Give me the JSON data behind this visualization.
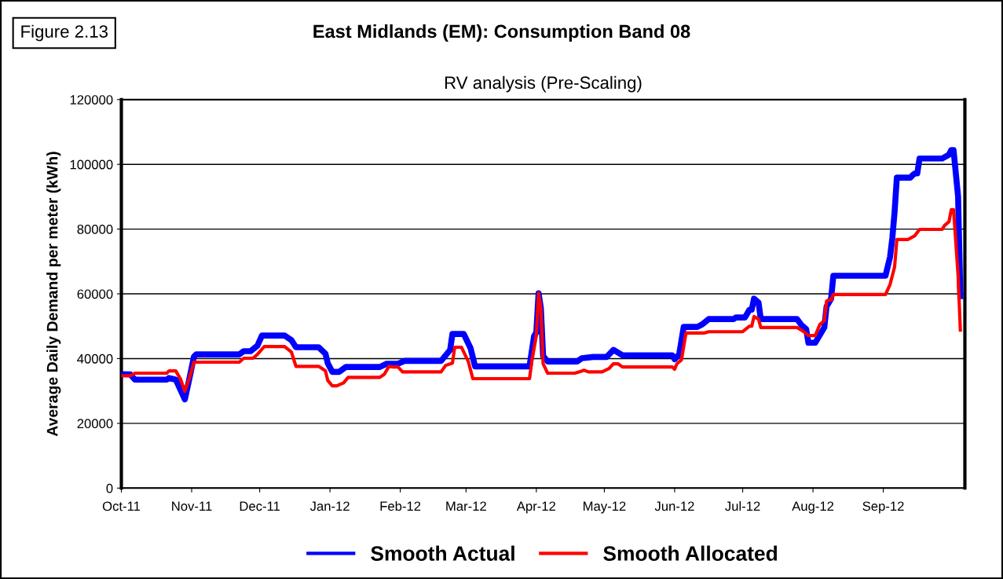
{
  "chart_data": {
    "type": "line",
    "title": "East Midlands (EM): Consumption Band 08",
    "subtitle": "RV analysis (Pre-Scaling)",
    "ylabel": "Average Daily Demand per meter (kWh)",
    "annotations": [
      "Figure 2.13"
    ],
    "xlim": [
      "2011-10-01",
      "2012-10-07"
    ],
    "ylim": [
      0,
      120000
    ],
    "yticks": [
      0,
      20000,
      40000,
      60000,
      80000,
      100000,
      120000
    ],
    "xticks": [
      {
        "value": "2011-10-01",
        "label": "Oct-11"
      },
      {
        "value": "2011-11-01",
        "label": "Nov-11"
      },
      {
        "value": "2011-12-01",
        "label": "Dec-11"
      },
      {
        "value": "2012-01-01",
        "label": "Jan-12"
      },
      {
        "value": "2012-02-01",
        "label": "Feb-12"
      },
      {
        "value": "2012-03-01",
        "label": "Mar-12"
      },
      {
        "value": "2012-04-01",
        "label": "Apr-12"
      },
      {
        "value": "2012-05-01",
        "label": "May-12"
      },
      {
        "value": "2012-06-01",
        "label": "Jun-12"
      },
      {
        "value": "2012-07-01",
        "label": "Jul-12"
      },
      {
        "value": "2012-08-01",
        "label": "Aug-12"
      },
      {
        "value": "2012-09-01",
        "label": "Sep-12"
      }
    ],
    "grid": "y",
    "legend": "bottom",
    "marker": "none",
    "line_style": "solid",
    "series": [
      {
        "name": "Smooth Actual",
        "color": "#0000ff",
        "x": [
          "2011-10-01",
          "2011-10-05",
          "2011-10-07",
          "2011-10-21",
          "2011-10-22",
          "2011-10-25",
          "2011-10-29",
          "2011-10-31",
          "2011-11-02",
          "2011-11-03",
          "2011-11-22",
          "2011-11-24",
          "2011-11-27",
          "2011-11-30",
          "2011-12-02",
          "2011-12-12",
          "2011-12-15",
          "2011-12-17",
          "2011-12-27",
          "2011-12-30",
          "2011-12-31",
          "2012-01-02",
          "2012-01-05",
          "2012-01-08",
          "2012-01-23",
          "2012-01-26",
          "2012-01-31",
          "2012-02-03",
          "2012-02-19",
          "2012-02-23",
          "2012-02-24",
          "2012-02-29",
          "2012-03-03",
          "2012-03-05",
          "2012-03-29",
          "2012-03-31",
          "2012-04-01",
          "2012-04-02",
          "2012-04-03",
          "2012-04-04",
          "2012-04-06",
          "2012-04-19",
          "2012-04-21",
          "2012-04-26",
          "2012-05-02",
          "2012-05-05",
          "2012-05-09",
          "2012-05-31",
          "2012-06-01",
          "2012-06-03",
          "2012-06-05",
          "2012-06-11",
          "2012-06-13",
          "2012-06-16",
          "2012-06-27",
          "2012-06-28",
          "2012-07-02",
          "2012-07-04",
          "2012-07-05",
          "2012-07-06",
          "2012-07-08",
          "2012-07-09",
          "2012-07-25",
          "2012-07-27",
          "2012-07-29",
          "2012-07-30",
          "2012-08-02",
          "2012-08-06",
          "2012-08-07",
          "2012-08-09",
          "2012-08-10",
          "2012-09-02",
          "2012-09-04",
          "2012-09-05",
          "2012-09-06",
          "2012-09-07",
          "2012-09-13",
          "2012-09-14",
          "2012-09-15",
          "2012-09-16",
          "2012-09-17",
          "2012-09-27",
          "2012-09-30",
          "2012-10-01",
          "2012-10-02",
          "2012-10-04",
          "2012-10-05"
        ],
        "values": [
          35200,
          35100,
          33500,
          33500,
          34000,
          33500,
          27400,
          33800,
          40600,
          41300,
          41300,
          42300,
          42300,
          44000,
          47100,
          47100,
          45700,
          43500,
          43500,
          41500,
          38600,
          35900,
          35900,
          37400,
          37400,
          38400,
          38400,
          39300,
          39300,
          42700,
          47600,
          47600,
          43200,
          37600,
          37600,
          46900,
          48100,
          60200,
          55600,
          40800,
          39100,
          39100,
          40100,
          40500,
          40500,
          42700,
          41000,
          41000,
          39800,
          41300,
          49800,
          49800,
          50500,
          52200,
          52200,
          52700,
          52700,
          55100,
          55100,
          58500,
          57300,
          52200,
          52200,
          50300,
          49100,
          44900,
          44900,
          49600,
          56100,
          58500,
          65600,
          65600,
          71400,
          77200,
          85300,
          95900,
          95900,
          96700,
          97200,
          97200,
          101800,
          101800,
          103000,
          104400,
          104400,
          90100,
          59300
        ]
      },
      {
        "name": "Smooth Allocated",
        "color": "#ff0000",
        "x": [
          "2011-10-01",
          "2011-10-05",
          "2011-10-07",
          "2011-10-21",
          "2011-10-22",
          "2011-10-25",
          "2011-10-27",
          "2011-10-29",
          "2011-10-31",
          "2011-11-02",
          "2011-11-22",
          "2011-11-24",
          "2011-11-28",
          "2011-11-30",
          "2011-12-03",
          "2011-12-12",
          "2011-12-15",
          "2011-12-17",
          "2011-12-27",
          "2011-12-30",
          "2011-12-31",
          "2012-01-02",
          "2012-01-04",
          "2012-01-07",
          "2012-01-09",
          "2012-01-23",
          "2012-01-25",
          "2012-01-27",
          "2012-01-29",
          "2012-01-31",
          "2012-02-02",
          "2012-02-19",
          "2012-02-21",
          "2012-02-24",
          "2012-02-25",
          "2012-02-28",
          "2012-03-02",
          "2012-03-04",
          "2012-03-29",
          "2012-03-30",
          "2012-04-01",
          "2012-04-02",
          "2012-04-03",
          "2012-04-04",
          "2012-04-06",
          "2012-04-18",
          "2012-04-20",
          "2012-04-22",
          "2012-04-24",
          "2012-04-30",
          "2012-05-03",
          "2012-05-05",
          "2012-05-07",
          "2012-05-09",
          "2012-05-31",
          "2012-06-01",
          "2012-06-02",
          "2012-06-04",
          "2012-06-06",
          "2012-06-14",
          "2012-06-16",
          "2012-07-01",
          "2012-07-04",
          "2012-07-05",
          "2012-07-06",
          "2012-07-08",
          "2012-07-09",
          "2012-07-25",
          "2012-07-28",
          "2012-07-30",
          "2012-08-02",
          "2012-08-04",
          "2012-08-06",
          "2012-08-07",
          "2012-08-08",
          "2012-08-09",
          "2012-08-10",
          "2012-09-02",
          "2012-09-04",
          "2012-09-06",
          "2012-09-07",
          "2012-09-12",
          "2012-09-15",
          "2012-09-17",
          "2012-09-27",
          "2012-09-28",
          "2012-09-30",
          "2012-10-01",
          "2012-10-02",
          "2012-10-04",
          "2012-10-05"
        ],
        "values": [
          34700,
          34700,
          35500,
          35500,
          36200,
          36200,
          33800,
          29900,
          34000,
          38900,
          38900,
          40100,
          40100,
          41300,
          43700,
          43700,
          42000,
          37600,
          37600,
          36200,
          33300,
          31600,
          31600,
          32500,
          34200,
          34200,
          35200,
          37600,
          37400,
          37400,
          35900,
          35900,
          37900,
          38600,
          43500,
          43500,
          39100,
          33800,
          33800,
          39100,
          47100,
          60200,
          55600,
          38400,
          35500,
          35500,
          35900,
          36400,
          35900,
          35900,
          36900,
          38400,
          38400,
          37400,
          37400,
          36700,
          38400,
          39600,
          47900,
          47900,
          48300,
          48300,
          50000,
          50000,
          53000,
          52200,
          49600,
          49600,
          48300,
          47100,
          47100,
          50500,
          51700,
          57800,
          58100,
          58100,
          59800,
          59800,
          62900,
          68300,
          76800,
          76800,
          78000,
          79900,
          79900,
          81100,
          82300,
          86000,
          86000,
          65800,
          48800
        ]
      }
    ]
  }
}
